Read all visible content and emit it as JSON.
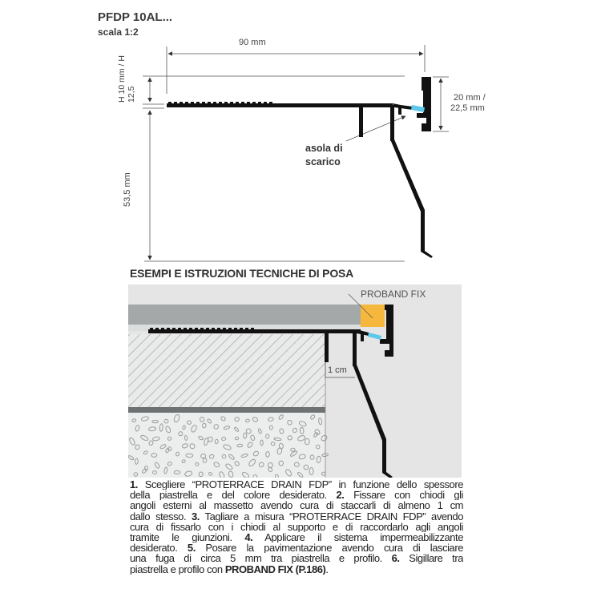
{
  "header": {
    "title": "PFDP 10AL...",
    "scale": "scala 1:2"
  },
  "technical_drawing": {
    "width_label": "90 mm",
    "height_label": "H 10 mm / H 12,5",
    "depth_label": "53,5 mm",
    "cap_height_label_1": "20 mm /",
    "cap_height_label_2": "22,5 mm",
    "callout_1": "asola di",
    "callout_2": "scarico"
  },
  "installation": {
    "heading": "ESEMPI E ISTRUZIONI TECNICHE DI POSA",
    "sealant_label": "PROBAND FIX",
    "gap_label": "1 cm",
    "colors": {
      "panel": "#e4e5e4",
      "tile": "#a4a8a8",
      "sealant": "#f6b83c",
      "drain_slot": "#5cc8ea",
      "profile": "#111111"
    }
  },
  "instructions": {
    "lines": [
      [
        "1.",
        " Scegliere “PROTERRACE DRAIN FDP” in funzione dello spessore"
      ],
      [
        "della piastrella e del colore desiderato. ",
        "2.",
        " Fissare con chiodi gli"
      ],
      [
        "angoli esterni al massetto avendo cura di staccarli di almeno 1 cm"
      ],
      [
        "dallo stesso. ",
        "3.",
        " Tagliare a misura “PROTERRACE DRAIN FDP” avendo"
      ],
      [
        "cura di fissarlo con i chiodi al supporto e di raccordarlo agli angoli"
      ],
      [
        "tramite le giunzioni. ",
        "4.",
        " Applicare il sistema impermeabilizzante"
      ],
      [
        "desiderato. ",
        "5.",
        " Posare la pavimentazione avendo cura di lasciare"
      ],
      [
        "una fuga di circa 5 mm tra piastrella e profilo. ",
        "6.",
        " Sigillare tra"
      ],
      [
        "piastrella e profilo con ",
        "PROBAND FIX (P.186)",
        "."
      ]
    ]
  }
}
